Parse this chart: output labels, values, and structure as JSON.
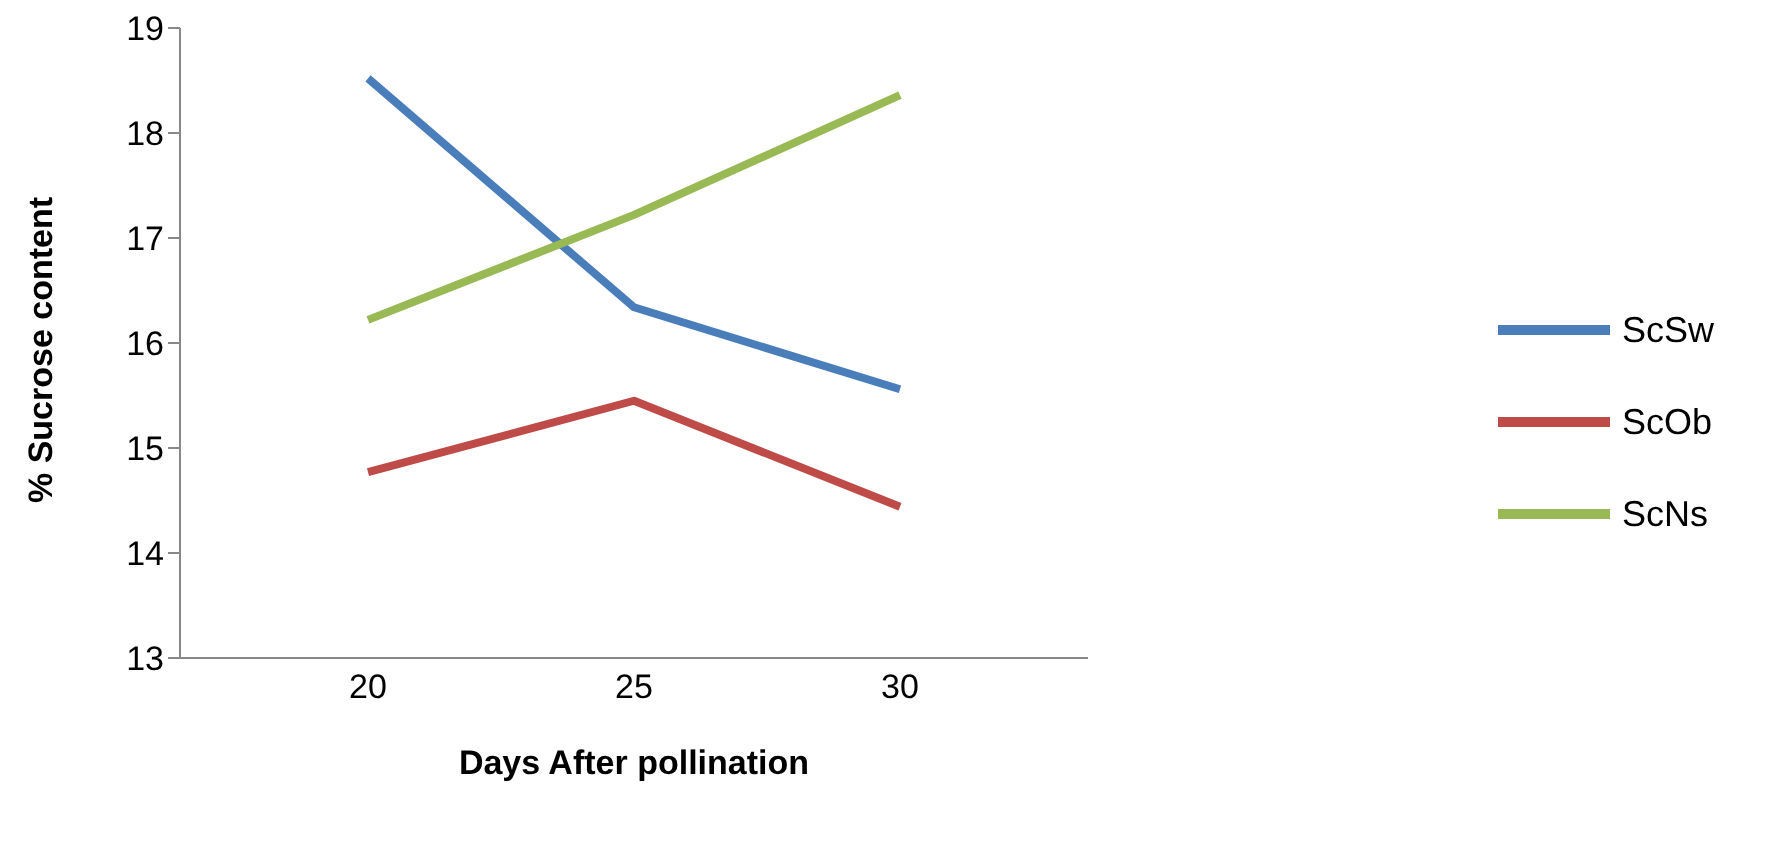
{
  "chart_data": {
    "type": "line",
    "xlabel": "Days After pollination",
    "ylabel": "% Sucrose content",
    "categories": [
      "20",
      "25",
      "30"
    ],
    "series": [
      {
        "name": "ScSw",
        "color": "#4a7ebb",
        "values": [
          18.52,
          16.34,
          15.56
        ]
      },
      {
        "name": "ScOb",
        "color": "#be4b48",
        "values": [
          14.77,
          15.45,
          14.44
        ]
      },
      {
        "name": "ScNs",
        "color": "#98b954",
        "values": [
          16.22,
          17.22,
          18.36
        ]
      }
    ],
    "ylim": [
      13,
      19
    ],
    "yticks": [
      13,
      14,
      15,
      16,
      17,
      18,
      19
    ],
    "grid": false,
    "legend": "right",
    "marker": "none",
    "line_style": "solid"
  }
}
